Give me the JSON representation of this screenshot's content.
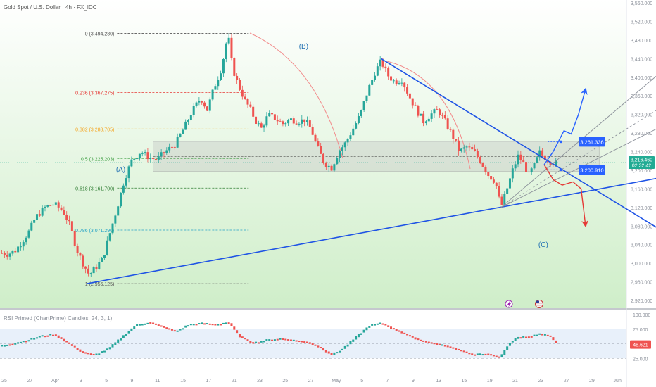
{
  "header": {
    "symbol_title": "Gold Spot / U.S. Dollar · 4h · FX_IDC"
  },
  "colors": {
    "up": "#26a69a",
    "down": "#ef5350",
    "trend": "#1e53e5",
    "channel": "#8a8f99",
    "fib_0": "#555555",
    "fib_236": "#e53935",
    "fib_382": "#f5a623",
    "fib_50": "#43a047",
    "fib_618": "#2e7d32",
    "fib_786": "#26a3c6",
    "fib_1": "#555555",
    "price_badge": "#22ab94",
    "target_badge": "#2962ff",
    "rsi_line": "#555555"
  },
  "price_axis": {
    "ticks": [
      "3,560.000",
      "3,520.000",
      "3,480.000",
      "3,440.000",
      "3,400.000",
      "3,360.000",
      "3,320.000",
      "3,280.000",
      "3,240.000",
      "3,200.000",
      "3,160.000",
      "3,120.000",
      "3,080.000",
      "3,040.000",
      "3,000.000",
      "2,960.000",
      "2,920.000"
    ],
    "current_price": "3,216.460",
    "countdown": "02:32:42"
  },
  "time_axis": {
    "ticks": [
      "25",
      "27",
      "Apr",
      "3",
      "5",
      "9",
      "11",
      "15",
      "17",
      "21",
      "23",
      "25",
      "27",
      "May",
      "5",
      "7",
      "9",
      "13",
      "15",
      "19",
      "21",
      "23",
      "27",
      "29",
      "Jun"
    ]
  },
  "rsi_axis": {
    "ticks": [
      "100.000",
      "75.000",
      "50.000",
      "25.000"
    ],
    "current": "48.621"
  },
  "annotations": {
    "fib_levels": [
      {
        "label": "0 (3,494.280)",
        "price": 3494.28,
        "color_key": "fib_0"
      },
      {
        "label": "0.236 (3,367.275)",
        "price": 3367.275,
        "color_key": "fib_236"
      },
      {
        "label": "0.382 (3,288.705)",
        "price": 3288.705,
        "color_key": "fib_382"
      },
      {
        "label": "0.5 (3,225.203)",
        "price": 3225.203,
        "color_key": "fib_50"
      },
      {
        "label": "0.618 (3,161.700)",
        "price": 3161.7,
        "color_key": "fib_618"
      },
      {
        "label": "0.786 (3,071.290)",
        "price": 3071.29,
        "color_key": "fib_786"
      },
      {
        "label": "1 (2,956.125)",
        "price": 2956.125,
        "color_key": "fib_1"
      }
    ],
    "waves": [
      {
        "label": "(A)",
        "x": 13.4,
        "price": 3197
      },
      {
        "label": "(B)",
        "x": 33.7,
        "price": 3462
      },
      {
        "label": "(C)",
        "x": 60.3,
        "price": 3035
      }
    ],
    "targets": [
      {
        "label": "3,261.336",
        "price": 3261.336
      },
      {
        "label": "3,200.910",
        "price": 3200.91
      }
    ]
  },
  "chart_data": {
    "type": "candlestick",
    "title": "Gold Spot / U.S. Dollar · 4h · FX_IDC",
    "xlabel": "",
    "ylabel": "",
    "ylim": [
      2920,
      3560
    ],
    "x_unit": "trading-day index (0 = Mar 25)",
    "price_path": [
      [
        0,
        3022
      ],
      [
        0.8,
        3020
      ],
      [
        1.6,
        3025
      ],
      [
        2.4,
        3045
      ],
      [
        3.2,
        3068
      ],
      [
        4,
        3100
      ],
      [
        5,
        3120
      ],
      [
        6,
        3128
      ],
      [
        7,
        3112
      ],
      [
        7.8,
        3080
      ],
      [
        8.5,
        3030
      ],
      [
        9.2,
        3000
      ],
      [
        9.9,
        2975
      ],
      [
        10.6,
        2990
      ],
      [
        11.4,
        3010
      ],
      [
        12.2,
        3065
      ],
      [
        13,
        3120
      ],
      [
        13.8,
        3180
      ],
      [
        14.6,
        3220
      ],
      [
        15.6,
        3240
      ],
      [
        16.5,
        3228
      ],
      [
        17.4,
        3222
      ],
      [
        18.2,
        3238
      ],
      [
        19.4,
        3255
      ],
      [
        20.4,
        3290
      ],
      [
        21.4,
        3330
      ],
      [
        22.3,
        3355
      ],
      [
        23,
        3330
      ],
      [
        23.8,
        3380
      ],
      [
        24.6,
        3420
      ],
      [
        25.3,
        3494
      ],
      [
        25.8,
        3420
      ],
      [
        26.5,
        3380
      ],
      [
        27.2,
        3350
      ],
      [
        27.8,
        3330
      ],
      [
        28.4,
        3305
      ],
      [
        29,
        3290
      ],
      [
        29.8,
        3320
      ],
      [
        30.6,
        3310
      ],
      [
        31.4,
        3300
      ],
      [
        32.2,
        3310
      ],
      [
        33,
        3305
      ],
      [
        33.8,
        3308
      ],
      [
        34.5,
        3290
      ],
      [
        35.2,
        3250
      ],
      [
        36,
        3215
      ],
      [
        36.8,
        3205
      ],
      [
        37.6,
        3240
      ],
      [
        38.4,
        3260
      ],
      [
        39.2,
        3290
      ],
      [
        40,
        3320
      ],
      [
        40.8,
        3370
      ],
      [
        41.6,
        3410
      ],
      [
        42.3,
        3435
      ],
      [
        43,
        3405
      ],
      [
        43.8,
        3390
      ],
      [
        44.6,
        3395
      ],
      [
        45.4,
        3360
      ],
      [
        46.2,
        3330
      ],
      [
        47,
        3305
      ],
      [
        47.8,
        3320
      ],
      [
        48.6,
        3330
      ],
      [
        49.4,
        3305
      ],
      [
        50.2,
        3275
      ],
      [
        51,
        3240
      ],
      [
        51.8,
        3250
      ],
      [
        52.6,
        3240
      ],
      [
        53.4,
        3218
      ],
      [
        54.2,
        3190
      ],
      [
        55,
        3175
      ],
      [
        55.6,
        3120
      ],
      [
        56.2,
        3155
      ],
      [
        56.9,
        3200
      ],
      [
        57.5,
        3230
      ],
      [
        58.1,
        3215
      ],
      [
        58.7,
        3190
      ],
      [
        59.3,
        3210
      ],
      [
        59.9,
        3238
      ],
      [
        60.6,
        3225
      ],
      [
        61.2,
        3218
      ],
      [
        61.7,
        3216
      ]
    ],
    "rsi_path": [
      [
        0,
        45
      ],
      [
        1.5,
        50
      ],
      [
        3,
        55
      ],
      [
        4.5,
        62
      ],
      [
        6,
        65
      ],
      [
        7.5,
        50
      ],
      [
        9,
        35
      ],
      [
        10.5,
        30
      ],
      [
        12,
        40
      ],
      [
        13.5,
        60
      ],
      [
        15,
        80
      ],
      [
        16.5,
        86
      ],
      [
        18,
        78
      ],
      [
        19.5,
        70
      ],
      [
        21,
        82
      ],
      [
        22.5,
        84
      ],
      [
        24,
        82
      ],
      [
        25.3,
        86
      ],
      [
        26.5,
        62
      ],
      [
        28,
        50
      ],
      [
        29.5,
        55
      ],
      [
        31,
        58
      ],
      [
        32.5,
        55
      ],
      [
        34,
        52
      ],
      [
        35.5,
        42
      ],
      [
        36.8,
        30
      ],
      [
        38,
        40
      ],
      [
        39.5,
        60
      ],
      [
        41,
        80
      ],
      [
        42.3,
        84
      ],
      [
        43.5,
        75
      ],
      [
        45,
        65
      ],
      [
        46.5,
        55
      ],
      [
        48,
        50
      ],
      [
        49.5,
        45
      ],
      [
        51,
        38
      ],
      [
        52.5,
        30
      ],
      [
        54,
        32
      ],
      [
        55.5,
        25
      ],
      [
        56.5,
        50
      ],
      [
        57.5,
        60
      ],
      [
        59,
        62
      ],
      [
        60,
        66
      ],
      [
        61,
        62
      ],
      [
        61.7,
        48.6
      ]
    ],
    "trend_lines": [
      {
        "from": [
          9.6,
          2956
        ],
        "to": [
          75,
          3190
        ]
      },
      {
        "from": [
          42.3,
          3440
        ],
        "to": [
          76,
          3040
        ]
      }
    ],
    "channel_lines": [
      {
        "from": [
          55.6,
          3120
        ],
        "to": [
          73,
          3405
        ]
      },
      {
        "from": [
          55.6,
          3120
        ],
        "to": [
          74,
          3300
        ]
      },
      {
        "from": [
          55.6,
          3120
        ],
        "to": [
          75,
          3355
        ]
      }
    ],
    "zone": {
      "low": 3198,
      "high": 3262,
      "from": 17,
      "to": 66.5
    },
    "bullish_path": [
      [
        60.4,
        3212
      ],
      [
        61.4,
        3240
      ],
      [
        62.6,
        3285
      ],
      [
        63.4,
        3278
      ],
      [
        64.2,
        3320
      ],
      [
        65,
        3375
      ]
    ],
    "bearish_path": [
      [
        60.4,
        3212
      ],
      [
        61.4,
        3180
      ],
      [
        62.4,
        3168
      ],
      [
        63.6,
        3175
      ],
      [
        64.5,
        3160
      ],
      [
        65,
        3080
      ]
    ],
    "rsi_range": [
      0,
      100
    ]
  }
}
